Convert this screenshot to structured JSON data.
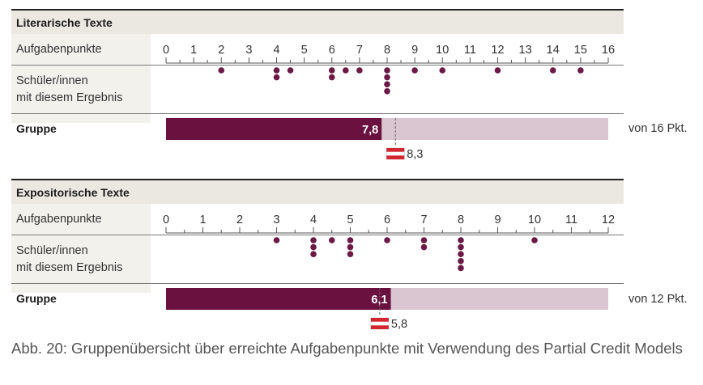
{
  "caption": "Abb. 20: Gruppenübersicht über erreichte Aufgabenpunkte mit Verwendung des Partial Credit Models",
  "colors": {
    "dot": "#6b1a45",
    "bar": "#6a1140",
    "bar_bg": "#d9c6d0",
    "flag_red": "#d22630"
  },
  "labels": {
    "axis_row": "Aufgabenpunkte",
    "students_row_1": "Schüler/innen",
    "students_row_2": "mit diesem Ergebnis",
    "group_row": "Gruppe"
  },
  "chart_data": [
    {
      "type": "scatter",
      "title": "Literarische Texte",
      "xlim": [
        0,
        16
      ],
      "ticks": [
        0,
        1,
        2,
        3,
        4,
        5,
        6,
        7,
        8,
        9,
        10,
        11,
        12,
        13,
        14,
        15,
        16
      ],
      "tick_labels": [
        "0",
        "1",
        "2",
        "3",
        "4",
        "5",
        "6",
        "7",
        "8",
        "9",
        "10",
        "11",
        "12",
        "13",
        "14",
        "15",
        "16"
      ],
      "student_scores": [
        {
          "x": 2,
          "count": 1
        },
        {
          "x": 4,
          "count": 2
        },
        {
          "x": 4.5,
          "count": 1
        },
        {
          "x": 6,
          "count": 2
        },
        {
          "x": 6.5,
          "count": 1
        },
        {
          "x": 7,
          "count": 1
        },
        {
          "x": 8,
          "count": 4
        },
        {
          "x": 9,
          "count": 1
        },
        {
          "x": 10,
          "count": 1
        },
        {
          "x": 12,
          "count": 1
        },
        {
          "x": 14,
          "count": 1
        },
        {
          "x": 15,
          "count": 1
        }
      ],
      "group_mean": 7.8,
      "group_mean_label": "7,8",
      "austria_mean": 8.3,
      "austria_mean_label": "8,3",
      "max_label": "von 16 Pkt."
    },
    {
      "type": "scatter",
      "title": "Expositorische Texte",
      "xlim": [
        0,
        12
      ],
      "ticks": [
        0,
        1,
        2,
        3,
        4,
        5,
        6,
        7,
        8,
        9,
        10,
        11,
        12
      ],
      "tick_labels": [
        "0",
        "1",
        "2",
        "3",
        "4",
        "5",
        "6",
        "7",
        "8",
        "9",
        "10",
        "11",
        "12"
      ],
      "student_scores": [
        {
          "x": 3,
          "count": 1
        },
        {
          "x": 4,
          "count": 3
        },
        {
          "x": 4.5,
          "count": 1
        },
        {
          "x": 5,
          "count": 3
        },
        {
          "x": 6,
          "count": 1
        },
        {
          "x": 7,
          "count": 2
        },
        {
          "x": 8,
          "count": 5
        },
        {
          "x": 10,
          "count": 1
        }
      ],
      "group_mean": 6.1,
      "group_mean_label": "6,1",
      "austria_mean": 5.8,
      "austria_mean_label": "5,8",
      "max_label": "von 12 Pkt."
    }
  ]
}
